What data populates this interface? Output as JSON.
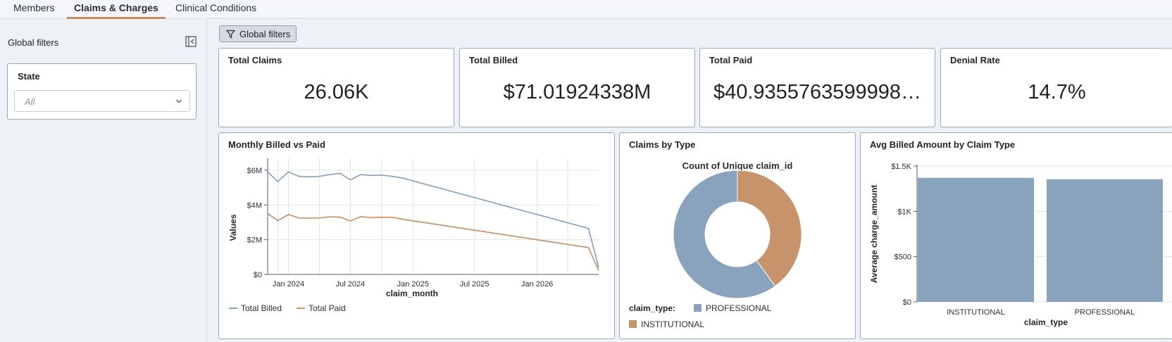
{
  "tabs": [
    {
      "label": "Members"
    },
    {
      "label": "Claims & Charges"
    },
    {
      "label": "Clinical Conditions"
    }
  ],
  "sidebar": {
    "title": "Global filters",
    "filter": {
      "label": "State",
      "value": "All"
    }
  },
  "toolbar": {
    "global_filters_label": "Global filters"
  },
  "kpis": [
    {
      "title": "Total Claims",
      "value": "26.06K"
    },
    {
      "title": "Total Billed",
      "value": "$71.01924338M"
    },
    {
      "title": "Total Paid",
      "value": "$40.9355763599998…"
    },
    {
      "title": "Denial Rate",
      "value": "14.7%"
    }
  ],
  "charts": {
    "line_title": "Monthly Billed vs Paid",
    "pie_title": "Claims by Type",
    "bar_title": "Avg Billed Amount by Claim Type"
  },
  "colors": {
    "billed": "#8aa3bd",
    "paid": "#c6936a",
    "grid": "#e1e4e8",
    "axis": "#555b63"
  },
  "chart_data": [
    {
      "type": "line",
      "title": "Monthly Billed vs Paid",
      "xlabel": "claim_month",
      "ylabel": "Values",
      "x_tick_labels": [
        "Jan 2024",
        "Jul 2024",
        "Jan 2025",
        "Jul 2025",
        "Jan 2026"
      ],
      "y_tick_labels": [
        "$0",
        "$2M",
        "$4M",
        "$6M"
      ],
      "ylim": [
        0,
        6200000
      ],
      "x": [
        "2023-11",
        "2023-12",
        "2024-01",
        "2024-02",
        "2024-03",
        "2024-04",
        "2024-05",
        "2024-06",
        "2024-07",
        "2024-08",
        "2024-09",
        "2024-10",
        "2024-11",
        "2024-12",
        "2026-06",
        "2026-07"
      ],
      "series": [
        {
          "name": "Total Billed",
          "values": [
            5900000,
            5350000,
            5900000,
            5650000,
            5620000,
            5650000,
            5750000,
            5820000,
            5450000,
            5750000,
            5700000,
            5720000,
            5650000,
            5550000,
            2650000,
            400000
          ]
        },
        {
          "name": "Total Paid",
          "values": [
            3500000,
            3100000,
            3450000,
            3250000,
            3240000,
            3250000,
            3320000,
            3300000,
            3080000,
            3330000,
            3270000,
            3300000,
            3290000,
            3180000,
            1550000,
            220000
          ]
        }
      ],
      "grid": true,
      "legend": "bottom-left"
    },
    {
      "type": "pie",
      "title": "Count of Unique claim_id",
      "legend_title": "claim_type:",
      "labels": [
        "PROFESSIONAL",
        "INSTITUTIONAL"
      ],
      "values": [
        60,
        40
      ],
      "donut": true,
      "legend": "bottom"
    },
    {
      "type": "bar",
      "xlabel": "claim_type",
      "ylabel": "Average charge_amount",
      "categories": [
        "INSTITUTIONAL",
        "PROFESSIONAL"
      ],
      "values": [
        1370,
        1355
      ],
      "ylim": [
        0,
        1500
      ],
      "y_tick_labels": [
        "$0",
        "$500",
        "$1K",
        "$1.5K"
      ],
      "grid": true
    }
  ]
}
